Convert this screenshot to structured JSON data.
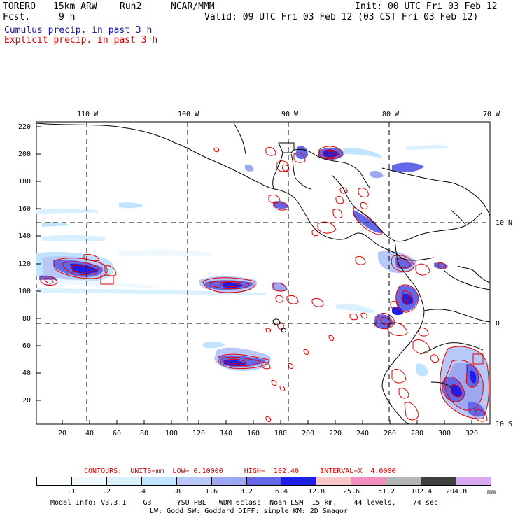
{
  "header": {
    "model": "TORERO",
    "resolution": "15km ARW",
    "run": "Run2",
    "org": "NCAR/MMM",
    "forecast_label": "Fcst.",
    "forecast_hours": "9 h",
    "init": "Init: 00 UTC Fri 03 Feb 12",
    "valid": "Valid: 09 UTC Fri 03 Feb 12 (03 CST Fri 03 Feb 12)"
  },
  "legend_lines": {
    "cumulus": "Cumulus precip. in past 3 h",
    "explicit": "Explicit precip. in past 3 h",
    "cumulus_color": "#1a1aa0",
    "explicit_color": "#e00000"
  },
  "map": {
    "top_lon_labels": [
      "110 W",
      "100 W",
      "90 W",
      "80 W",
      "70 W"
    ],
    "right_lat_labels": [
      "10 N",
      "0",
      "10 S"
    ],
    "left_ticks": [
      "220",
      "200",
      "180",
      "160",
      "140",
      "120",
      "100",
      "80",
      "60",
      "40",
      "20"
    ],
    "bottom_ticks": [
      "20",
      "40",
      "60",
      "80",
      "100",
      "120",
      "140",
      "160",
      "180",
      "200",
      "220",
      "240",
      "260",
      "280",
      "300",
      "320"
    ]
  },
  "contours": {
    "title": "CONTOURS:  UNITS=mm  LOW= 0.10000     HIGH=  102.40     INTERVAL=X  4.0000",
    "color": "#e00000"
  },
  "colorbar": {
    "labels": [
      ".1",
      ".2",
      ".4",
      ".8",
      "1.6",
      "3.2",
      "6.4",
      "12.8",
      "25.6",
      "51.2",
      "102.4",
      "204.8"
    ],
    "unit": "mm",
    "colors": [
      "#ffffff",
      "#f0f8ff",
      "#d8f0ff",
      "#c0e4ff",
      "#b8c8f8",
      "#9ca8f0",
      "#6468e8",
      "#1e1ee8",
      "#f8c8c8",
      "#f090c0",
      "#b4b4b4",
      "#404040",
      "#d8a8f0"
    ]
  },
  "footer": {
    "line1": "Model Info: V3.3.1    G3      YSU PBL   WDM 6class  Noah LSM  15 km,    44 levels,    74 sec",
    "line2": "LW: Godd SW: Goddard DIFF: simple KM: 2D Smagor"
  }
}
